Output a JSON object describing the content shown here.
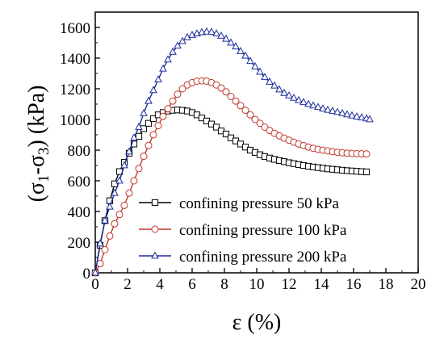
{
  "chart_data": {
    "type": "line",
    "xlabel": "ε (%)",
    "ylabel_main": "(σ",
    "ylabel_sub1": "1",
    "ylabel_mid": "-σ",
    "ylabel_sub2": "3",
    "ylabel_tail": ") (kPa)",
    "xlim": [
      0,
      20
    ],
    "ylim": [
      0,
      1700
    ],
    "xticks": [
      0,
      2,
      4,
      6,
      8,
      10,
      12,
      14,
      16,
      18,
      20
    ],
    "yticks": [
      0,
      200,
      400,
      600,
      800,
      1000,
      1200,
      1400,
      1600
    ],
    "grid": false,
    "legend_position": "lower-right",
    "series": [
      {
        "name": "confining pressure 50 kPa",
        "color": "#000000",
        "marker": "square",
        "x": [
          0,
          0.3,
          0.6,
          0.9,
          1.2,
          1.5,
          1.8,
          2.1,
          2.4,
          2.7,
          3.0,
          3.3,
          3.6,
          3.9,
          4.2,
          4.5,
          4.8,
          5.1,
          5.4,
          5.7,
          6.0,
          6.3,
          6.6,
          6.9,
          7.2,
          7.5,
          7.8,
          8.1,
          8.4,
          8.7,
          9.0,
          9.3,
          9.6,
          9.9,
          10.2,
          10.5,
          10.8,
          11.1,
          11.4,
          11.7,
          12.0,
          12.3,
          12.6,
          12.9,
          13.2,
          13.5,
          13.8,
          14.1,
          14.4,
          14.7,
          15.0,
          15.3,
          15.6,
          15.9,
          16.2,
          16.5,
          16.8
        ],
        "y": [
          0,
          180,
          340,
          470,
          580,
          660,
          720,
          780,
          840,
          890,
          940,
          975,
          1005,
          1030,
          1045,
          1055,
          1060,
          1062,
          1060,
          1055,
          1045,
          1030,
          1010,
          990,
          970,
          950,
          925,
          905,
          880,
          860,
          840,
          820,
          800,
          785,
          770,
          758,
          748,
          740,
          732,
          725,
          718,
          712,
          706,
          700,
          695,
          690,
          686,
          682,
          678,
          675,
          672,
          669,
          666,
          664,
          662,
          660,
          658
        ]
      },
      {
        "name": "confining pressure 100 kPa",
        "color": "#c0392b",
        "marker": "circle",
        "x": [
          0,
          0.3,
          0.6,
          0.9,
          1.2,
          1.5,
          1.8,
          2.1,
          2.4,
          2.7,
          3.0,
          3.3,
          3.6,
          3.9,
          4.2,
          4.5,
          4.8,
          5.1,
          5.4,
          5.7,
          6.0,
          6.3,
          6.6,
          6.9,
          7.2,
          7.5,
          7.8,
          8.1,
          8.4,
          8.7,
          9.0,
          9.3,
          9.6,
          9.9,
          10.2,
          10.5,
          10.8,
          11.1,
          11.4,
          11.7,
          12.0,
          12.3,
          12.6,
          12.9,
          13.2,
          13.5,
          13.8,
          14.1,
          14.4,
          14.7,
          15.0,
          15.3,
          15.6,
          15.9,
          16.2,
          16.5,
          16.8
        ],
        "y": [
          0,
          60,
          150,
          240,
          320,
          380,
          440,
          520,
          600,
          680,
          760,
          830,
          900,
          960,
          1020,
          1070,
          1120,
          1165,
          1200,
          1225,
          1240,
          1250,
          1252,
          1250,
          1240,
          1225,
          1205,
          1180,
          1150,
          1120,
          1090,
          1060,
          1030,
          1000,
          975,
          950,
          928,
          910,
          893,
          878,
          865,
          852,
          840,
          830,
          820,
          812,
          805,
          800,
          795,
          790,
          786,
          783,
          780,
          778,
          777,
          776,
          775
        ]
      },
      {
        "name": "confining pressure 200 kPa",
        "color": "#1f2d9a",
        "marker": "triangle",
        "x": [
          0,
          0.3,
          0.6,
          0.9,
          1.2,
          1.5,
          1.8,
          2.1,
          2.4,
          2.7,
          3.0,
          3.3,
          3.6,
          3.9,
          4.2,
          4.5,
          4.8,
          5.1,
          5.4,
          5.7,
          6.0,
          6.3,
          6.6,
          6.9,
          7.2,
          7.5,
          7.8,
          8.1,
          8.4,
          8.7,
          9.0,
          9.3,
          9.6,
          9.9,
          10.2,
          10.5,
          10.8,
          11.1,
          11.4,
          11.7,
          12.0,
          12.3,
          12.6,
          12.9,
          13.2,
          13.5,
          13.8,
          14.1,
          14.4,
          14.7,
          15.0,
          15.3,
          15.6,
          15.9,
          16.2,
          16.5,
          16.8,
          17.0
        ],
        "y": [
          0,
          190,
          340,
          430,
          520,
          600,
          700,
          790,
          880,
          950,
          1040,
          1120,
          1190,
          1260,
          1330,
          1390,
          1440,
          1480,
          1510,
          1535,
          1550,
          1560,
          1568,
          1572,
          1570,
          1560,
          1545,
          1525,
          1500,
          1475,
          1445,
          1415,
          1380,
          1345,
          1310,
          1275,
          1245,
          1220,
          1195,
          1172,
          1155,
          1140,
          1125,
          1112,
          1100,
          1090,
          1080,
          1070,
          1062,
          1055,
          1048,
          1040,
          1032,
          1025,
          1018,
          1012,
          1006,
          1000
        ]
      }
    ]
  }
}
